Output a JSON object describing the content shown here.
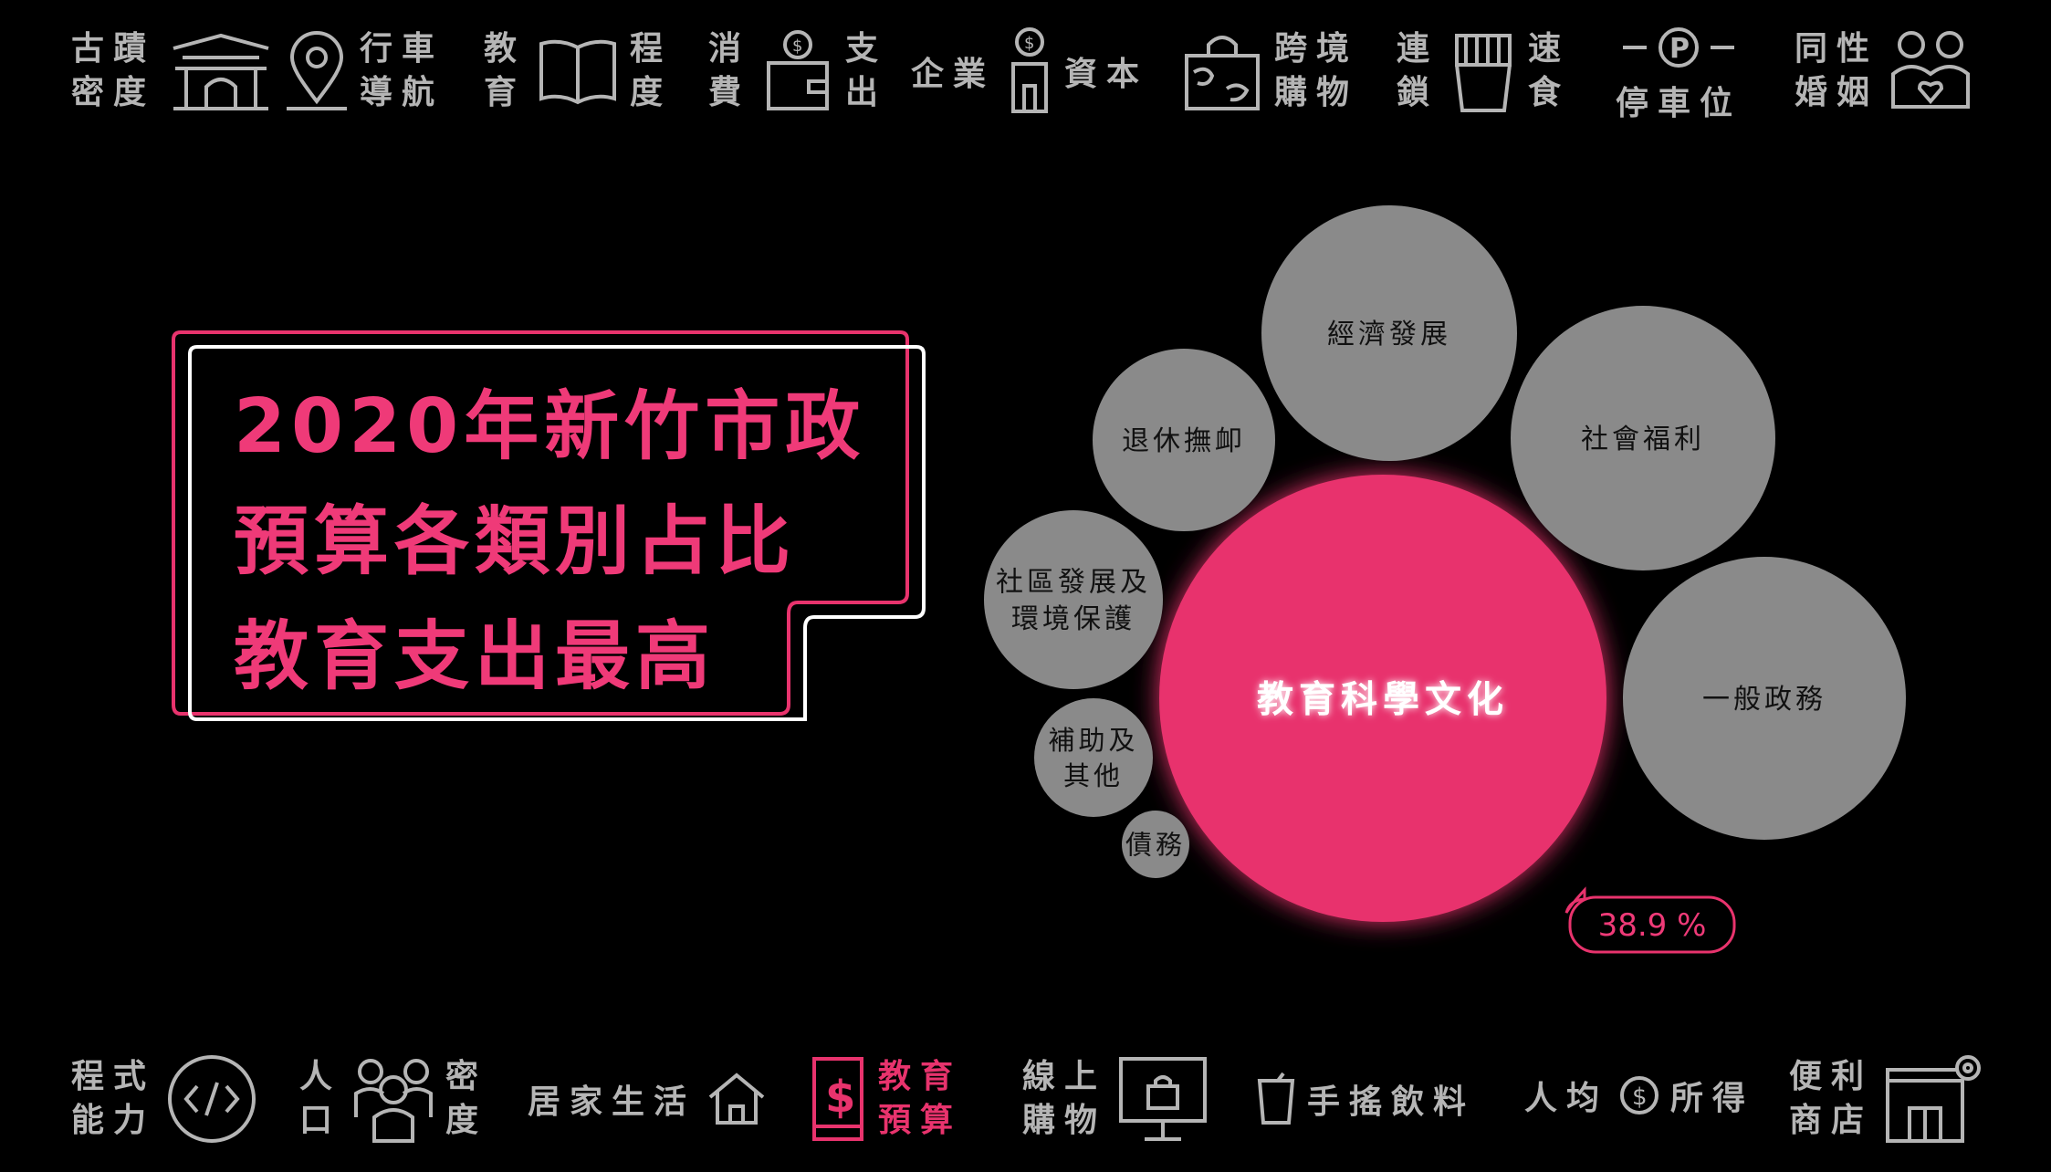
{
  "top_nav": [
    {
      "id": "heritage",
      "l1": "古蹟",
      "l2": "密度",
      "icon": "city-gate-icon"
    },
    {
      "id": "driving",
      "l1": "行車",
      "l2": "導航",
      "icon": "location-pin-icon"
    },
    {
      "id": "edu-level",
      "pre1": "教",
      "pre2": "育",
      "post1": "程",
      "post2": "度",
      "icon": "open-book-icon"
    },
    {
      "id": "consume",
      "pre1": "消",
      "pre2": "費",
      "post1": "支",
      "post2": "出",
      "icon": "wallet-icon"
    },
    {
      "id": "capital",
      "pre": "企業",
      "post": "資本",
      "icon": "building-dollar-icon"
    },
    {
      "id": "crossborder",
      "l1": "跨境",
      "l2": "購物",
      "icon": "world-bag-icon"
    },
    {
      "id": "fastfood",
      "pre1": "連",
      "pre2": "鎖",
      "post1": "速",
      "post2": "食",
      "icon": "fries-icon"
    },
    {
      "id": "parking",
      "label": "停車位",
      "icon": "parking-icon"
    },
    {
      "id": "marriage",
      "l1": "同性",
      "l2": "婚姻",
      "icon": "couple-heart-icon"
    }
  ],
  "bottom_nav": [
    {
      "id": "coding",
      "l1": "程式",
      "l2": "能力",
      "icon": "code-icon"
    },
    {
      "id": "population",
      "pre1": "人",
      "pre2": "口",
      "post1": "密",
      "post2": "度",
      "icon": "people-icon"
    },
    {
      "id": "home",
      "label": "居家生活",
      "icon": "house-icon"
    },
    {
      "id": "edu-budget",
      "l1": "教育",
      "l2": "預算",
      "icon": "dollar-book-icon"
    },
    {
      "id": "online",
      "l1": "線上",
      "l2": "購物",
      "icon": "monitor-bag-icon"
    },
    {
      "id": "drinks",
      "label": "手搖飲料",
      "icon": "cup-icon"
    },
    {
      "id": "income",
      "pre": "人均",
      "post": "所得",
      "icon": "dollar-circle-icon"
    },
    {
      "id": "store",
      "l1": "便利",
      "l2": "商店",
      "icon": "store-icon"
    }
  ],
  "title": [
    "2020年新竹市政",
    "預算各類別占比",
    "教育支出最高"
  ],
  "colors": {
    "accent": "#e8336d",
    "bubble": "#8a8a8a",
    "bg": "#000000"
  },
  "chart_data": {
    "type": "bubble",
    "series": [
      {
        "label": "教育科學文化",
        "value": 38.9,
        "highlight": true
      },
      {
        "label": "一般政務"
      },
      {
        "label": "社會福利"
      },
      {
        "label": "經濟發展"
      },
      {
        "label": "退休撫卹"
      },
      {
        "label": [
          "社區發展及",
          "環境保護"
        ]
      },
      {
        "label": [
          "補助及",
          "其他"
        ]
      },
      {
        "label": "債務"
      }
    ],
    "callout": "38.9 %"
  }
}
